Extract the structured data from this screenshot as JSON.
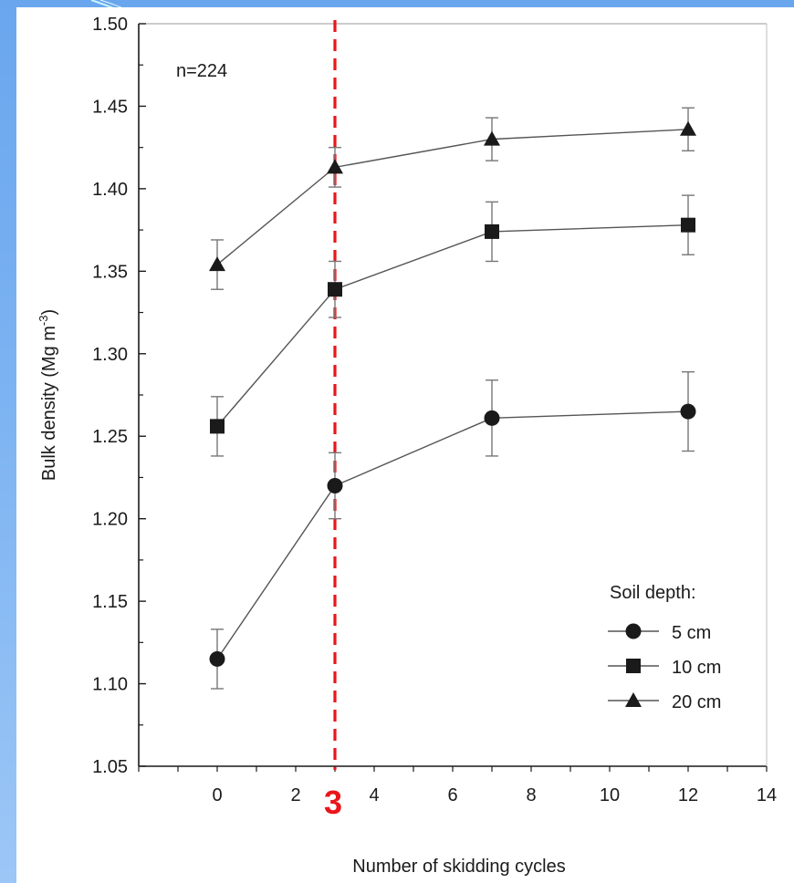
{
  "colors": {
    "background": "#7cb3f2",
    "card": "#ffffff",
    "ink": "#1a1a1a",
    "marker_line": "#e8161b",
    "series_line": "#555555",
    "error_bar": "#777777"
  },
  "chart_data": {
    "type": "line",
    "xlabel": "Number of skidding cycles",
    "ylabel": "Bulk density (Mg m",
    "ylabel_superscript": "-3",
    "ylabel_close": ")",
    "xlim": [
      -2,
      14
    ],
    "ylim": [
      1.05,
      1.5
    ],
    "xticks": [
      0,
      2,
      4,
      6,
      8,
      10,
      12,
      14
    ],
    "yticks": [
      "1.05",
      "1.10",
      "1.15",
      "1.20",
      "1.25",
      "1.30",
      "1.35",
      "1.40",
      "1.45",
      "1.50"
    ],
    "grid": false,
    "annotation": "n=224",
    "marker_line": {
      "x": 3,
      "label": "3",
      "style": "dashed",
      "color": "#e8161b"
    },
    "legend": {
      "title": "Soil depth:",
      "placement": "bottom-right"
    },
    "series": [
      {
        "name": "5 cm",
        "marker": "circle",
        "x": [
          0,
          3,
          7,
          12
        ],
        "values": [
          1.115,
          1.22,
          1.261,
          1.265
        ],
        "error": [
          0.018,
          0.02,
          0.023,
          0.024
        ]
      },
      {
        "name": "10 cm",
        "marker": "square",
        "x": [
          0,
          3,
          7,
          12
        ],
        "values": [
          1.256,
          1.339,
          1.374,
          1.378
        ],
        "error": [
          0.018,
          0.017,
          0.018,
          0.018
        ]
      },
      {
        "name": "20 cm",
        "marker": "triangle",
        "x": [
          0,
          3,
          7,
          12
        ],
        "values": [
          1.354,
          1.413,
          1.43,
          1.436
        ],
        "error": [
          0.015,
          0.012,
          0.013,
          0.013
        ]
      }
    ]
  }
}
